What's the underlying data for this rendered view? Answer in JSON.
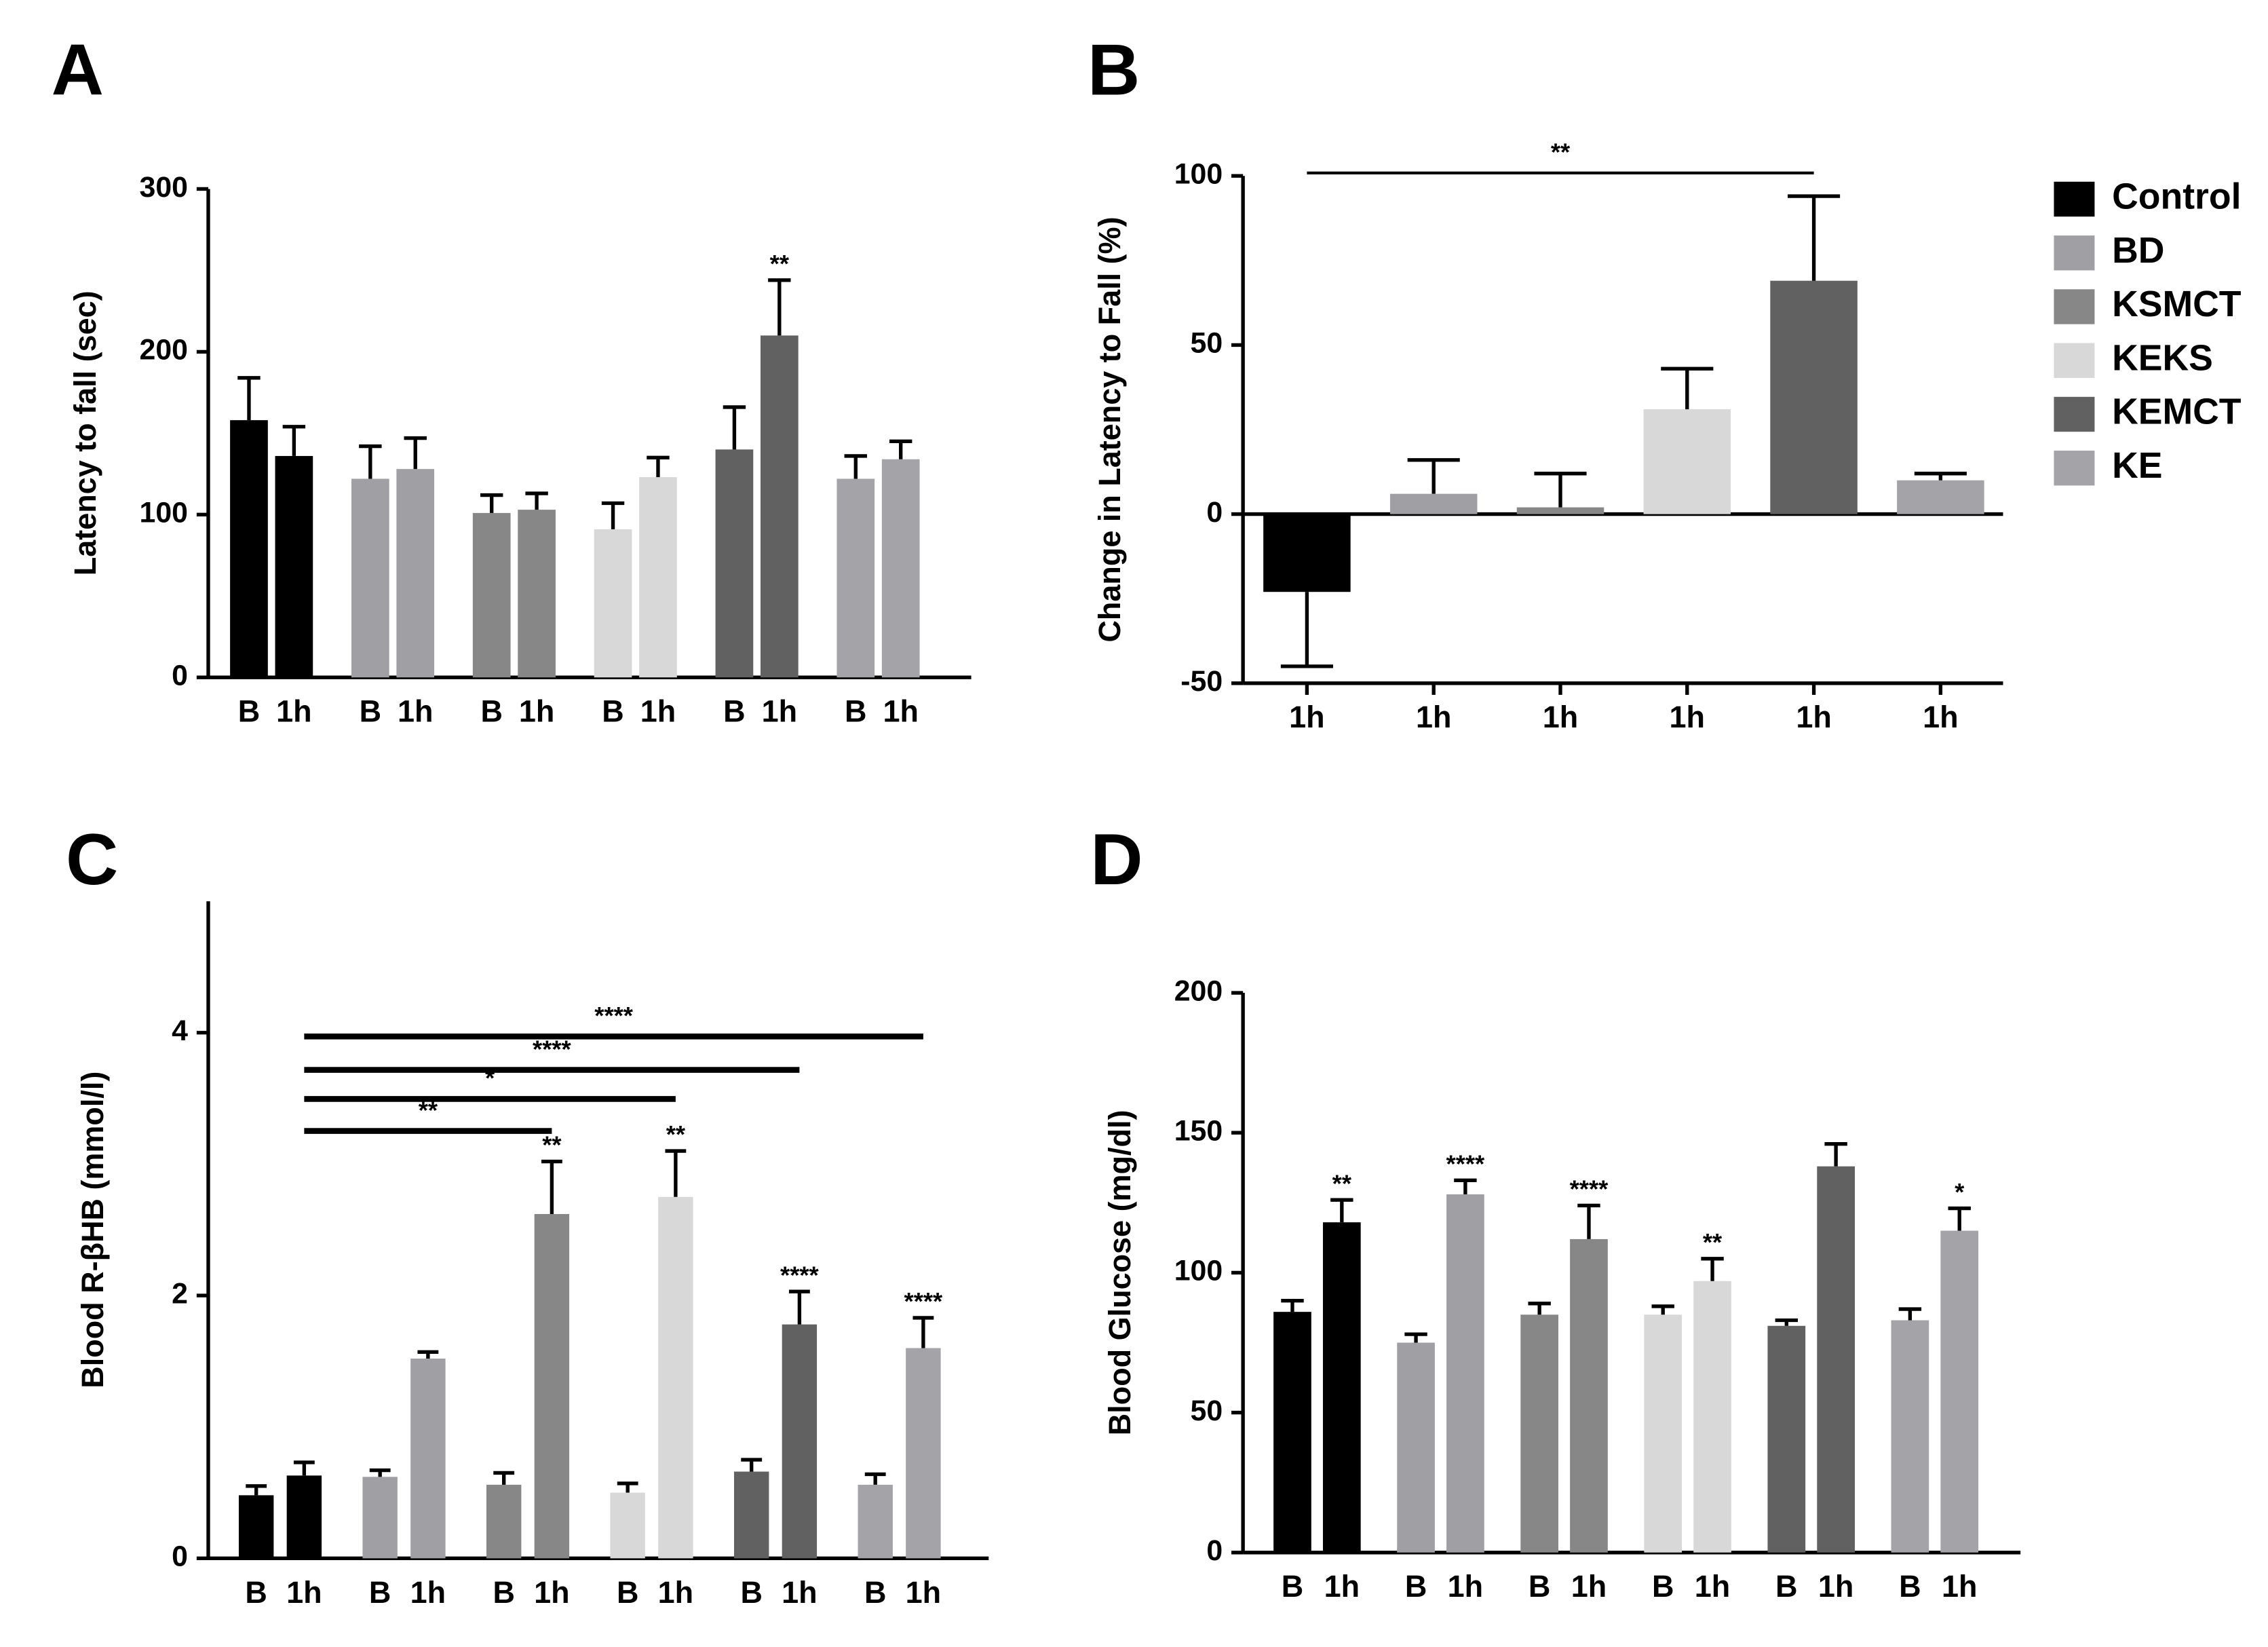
{
  "chart_data": [
    {
      "type": "bar",
      "panel": "A",
      "ylabel": "Latency to fall (sec)",
      "categories": [
        "B",
        "1h",
        "B",
        "1h",
        "B",
        "1h",
        "B",
        "1h",
        "B",
        "1h",
        "B",
        "1h"
      ],
      "values": [
        158,
        136,
        122,
        128,
        101,
        103,
        91,
        123,
        140,
        210,
        122,
        134
      ],
      "errors": [
        26,
        18,
        20,
        19,
        11,
        10,
        16,
        12,
        26,
        34,
        14,
        11
      ],
      "colors": [
        "#000000",
        "#000000",
        "#a0a0a4",
        "#a0a0a4",
        "#878787",
        "#878787",
        "#d8d8d8",
        "#d8d8d8",
        "#616161",
        "#616161",
        "#a3a3a8",
        "#a3a3a8"
      ],
      "bar_labels": [
        null,
        null,
        null,
        null,
        null,
        null,
        null,
        null,
        null,
        "**",
        null,
        null
      ],
      "ylim": [
        0,
        300
      ],
      "yticks": [
        0,
        100,
        200,
        300
      ]
    },
    {
      "type": "bar",
      "panel": "B",
      "ylabel": "Change in Latency to Fall (%)",
      "categories": [
        "1h",
        "1h",
        "1h",
        "1h",
        "1h",
        "1h"
      ],
      "values": [
        -23,
        6,
        2,
        31,
        69,
        10
      ],
      "errors": [
        22,
        10,
        10,
        12,
        25,
        2
      ],
      "colors": [
        "#000000",
        "#a0a0a4",
        "#878787",
        "#d8d8d8",
        "#616161",
        "#a3a3a8"
      ],
      "legend": [
        {
          "name": "Control",
          "color": "#000000"
        },
        {
          "name": "BD",
          "color": "#a0a0a4"
        },
        {
          "name": "KSMCT",
          "color": "#878787"
        },
        {
          "name": "KEKS",
          "color": "#d8d8d8"
        },
        {
          "name": "KEMCT",
          "color": "#616161"
        },
        {
          "name": "KE",
          "color": "#a3a3a8"
        }
      ],
      "brackets": [
        {
          "label": "**",
          "from": 0,
          "to": 4
        }
      ],
      "ylim": [
        -50,
        100
      ],
      "yticks": [
        -50,
        0,
        50,
        100
      ]
    },
    {
      "type": "bar",
      "panel": "C",
      "ylabel": "Blood R-βHB (mmol/l)",
      "categories": [
        "B",
        "1h",
        "B",
        "1h",
        "B",
        "1h",
        "B",
        "1h",
        "B",
        "1h",
        "B",
        "1h"
      ],
      "values": [
        0.48,
        0.63,
        0.62,
        1.52,
        0.56,
        2.62,
        0.5,
        2.75,
        0.66,
        1.78,
        0.56,
        1.6
      ],
      "errors": [
        0.07,
        0.1,
        0.05,
        0.05,
        0.09,
        0.4,
        0.07,
        0.35,
        0.09,
        0.25,
        0.08,
        0.23
      ],
      "colors": [
        "#000000",
        "#000000",
        "#a0a0a4",
        "#a0a0a4",
        "#878787",
        "#878787",
        "#d8d8d8",
        "#d8d8d8",
        "#616161",
        "#616161",
        "#a3a3a8",
        "#a3a3a8"
      ],
      "bar_labels": [
        null,
        null,
        null,
        null,
        null,
        "**",
        null,
        "**",
        null,
        "****",
        null,
        "****"
      ],
      "brackets": [
        {
          "label": "**",
          "from": 1,
          "to": 5
        },
        {
          "label": "*",
          "from": 1,
          "to": 7
        },
        {
          "label": "****",
          "from": 1,
          "to": 9
        },
        {
          "label": "****",
          "from": 1,
          "to": 11
        }
      ],
      "ylim": [
        0,
        5
      ],
      "yticks": [
        0,
        2,
        4
      ]
    },
    {
      "type": "bar",
      "panel": "D",
      "ylabel": "Blood Glucose (mg/dl)",
      "categories": [
        "B",
        "1h",
        "B",
        "1h",
        "B",
        "1h",
        "B",
        "1h",
        "B",
        "1h",
        "B",
        "1h"
      ],
      "values": [
        86,
        118,
        75,
        128,
        85,
        112,
        85,
        97,
        81,
        138,
        83,
        115
      ],
      "errors": [
        4,
        8,
        3,
        5,
        4,
        12,
        3,
        8,
        2,
        8,
        4,
        8
      ],
      "colors": [
        "#000000",
        "#000000",
        "#a0a0a4",
        "#a0a0a4",
        "#878787",
        "#878787",
        "#d8d8d8",
        "#d8d8d8",
        "#616161",
        "#616161",
        "#a3a3a8",
        "#a3a3a8"
      ],
      "bar_labels": [
        null,
        "**",
        null,
        "****",
        null,
        "****",
        null,
        "**",
        null,
        null,
        null,
        "*"
      ],
      "ylim": [
        0,
        200
      ],
      "yticks": [
        0,
        50,
        100,
        150,
        200
      ]
    }
  ]
}
